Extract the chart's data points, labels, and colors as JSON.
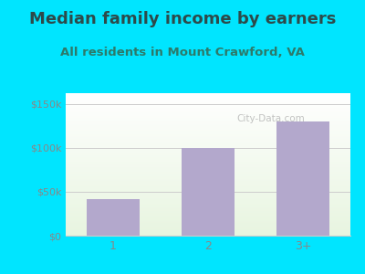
{
  "title": "Median family income by earners",
  "subtitle": "All residents in Mount Crawford, VA",
  "categories": [
    "1",
    "2",
    "3+"
  ],
  "values": [
    42000,
    100000,
    130000
  ],
  "bar_color": "#b3a8cc",
  "ylim": [
    0,
    162000
  ],
  "yticks": [
    0,
    50000,
    100000,
    150000
  ],
  "ytick_labels": [
    "$0",
    "$50k",
    "$100k",
    "$150k"
  ],
  "background_outer": "#00e5ff",
  "plot_bg_top": "#e8f5e0",
  "plot_bg_bottom": "#ffffff",
  "title_color": "#2d4a4a",
  "subtitle_color": "#2d7a6a",
  "tick_color": "#888888",
  "watermark": "City-Data.com",
  "title_fontsize": 13,
  "subtitle_fontsize": 9.5
}
